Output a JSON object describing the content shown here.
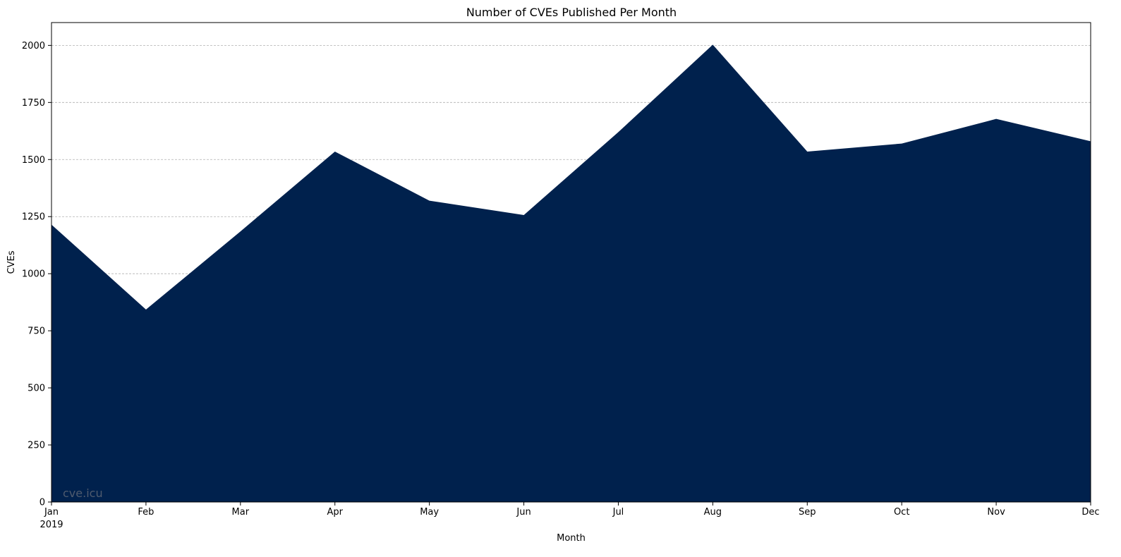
{
  "chart_data": {
    "type": "area",
    "title": "Number of CVEs Published Per Month",
    "xlabel": "Month",
    "ylabel": "CVEs",
    "categories": [
      "Jan",
      "Feb",
      "Mar",
      "Apr",
      "May",
      "Jun",
      "Jul",
      "Aug",
      "Sep",
      "Oct",
      "Nov",
      "Dec"
    ],
    "year_label": "2019",
    "values": [
      1215,
      843,
      1185,
      1535,
      1320,
      1257,
      1620,
      2003,
      1535,
      1570,
      1678,
      1580
    ],
    "ylim": [
      0,
      2100
    ],
    "yticks": [
      0,
      250,
      500,
      750,
      1000,
      1250,
      1500,
      1750,
      2000
    ],
    "grid": "horizontal-dashed",
    "legend": "none",
    "fill_color": "#00214d",
    "watermark": "cve.icu",
    "watermark_color": "#4f5b6e"
  }
}
